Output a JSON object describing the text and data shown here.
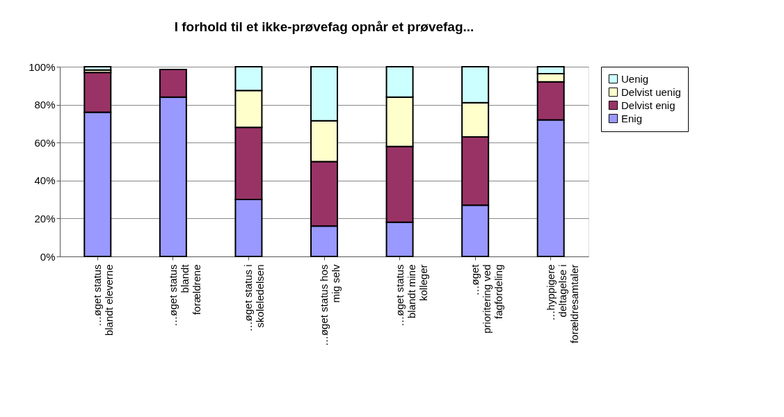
{
  "chart_data": {
    "type": "bar",
    "title": "I forhold til et ikke-prøvefag opnår et prøvefag...",
    "categories": [
      "…øget status blandt eleverne",
      "…øget status blandt forældrene",
      "…øget status i skoleledelsen",
      "…øget status hos mig selv",
      "…øget status blandt mine kolleger",
      "…øget prioritering ved fagfordeling",
      "…hyppigere deltagelse i forældresamtaler"
    ],
    "stacked": true,
    "series": [
      {
        "name": "Enig",
        "color": "#9999ff",
        "values": [
          76,
          84,
          30,
          16,
          18,
          27,
          72
        ]
      },
      {
        "name": "Delvist enig",
        "color": "#993366",
        "values": [
          21,
          14.5,
          38,
          34,
          40,
          36,
          20
        ]
      },
      {
        "name": "Delvist uenig",
        "color": "#ffffcc",
        "values": [
          1.3,
          null,
          19.5,
          21.5,
          26,
          18,
          4.3
        ]
      },
      {
        "name": "Uenig",
        "color": "#ccffff",
        "values": [
          1.7,
          null,
          12.5,
          28.5,
          16,
          19,
          3.7
        ]
      }
    ],
    "ylim": [
      0,
      100
    ],
    "yticks": [
      {
        "value": 0,
        "label": "0%"
      },
      {
        "value": 20,
        "label": "20%"
      },
      {
        "value": 40,
        "label": "40%"
      },
      {
        "value": 60,
        "label": "60%"
      },
      {
        "value": 80,
        "label": "80%"
      },
      {
        "value": 100,
        "label": "100%"
      }
    ],
    "grid": "y",
    "legend": "right"
  }
}
